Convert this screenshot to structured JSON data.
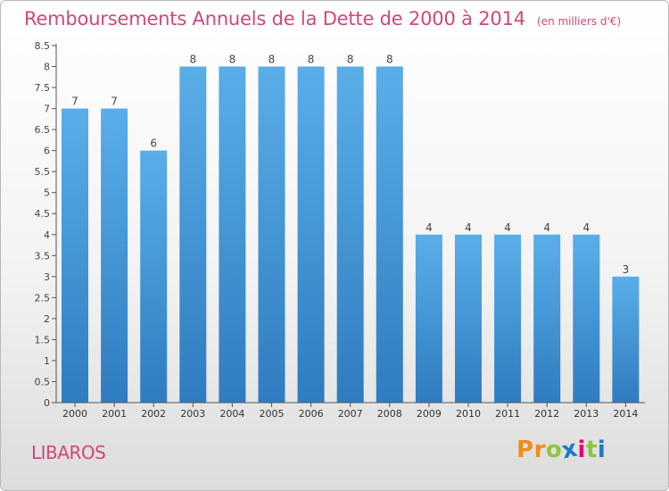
{
  "chart_data": {
    "type": "bar",
    "title": "Remboursements Annuels de la Dette de 2000 à 2014",
    "subtitle": "(en milliers d'€)",
    "categories": [
      "2000",
      "2001",
      "2002",
      "2003",
      "2004",
      "2005",
      "2006",
      "2007",
      "2008",
      "2009",
      "2010",
      "2011",
      "2012",
      "2013",
      "2014"
    ],
    "values": [
      7,
      7,
      6,
      8,
      8,
      8,
      8,
      8,
      8,
      4,
      4,
      4,
      4,
      4,
      3
    ],
    "data_labels": [
      "7",
      "7",
      "6",
      "8",
      "8",
      "8",
      "8",
      "8",
      "8",
      "4",
      "4",
      "4",
      "4",
      "4",
      "3"
    ],
    "ylim": [
      0,
      8.5
    ],
    "yticks": [
      0,
      0.5,
      1,
      1.5,
      2,
      2.5,
      3,
      3.5,
      4,
      4.5,
      5,
      5.5,
      6,
      6.5,
      7,
      7.5,
      8,
      8.5
    ],
    "ytick_labels": [
      "0",
      "0.5",
      "1",
      "1.5",
      "2",
      "2.5",
      "3",
      "3.5",
      "4",
      "4.5",
      "5",
      "5.5",
      "6",
      "6.5",
      "7",
      "7.5",
      "8",
      "8.5"
    ],
    "grid": false,
    "colors": {
      "bar_top": "#5aaee8",
      "bar_bottom": "#2f7cc0",
      "accent": "#d1477a"
    }
  },
  "footer": {
    "commune": "LIBAROS",
    "brand_letters": [
      "P",
      "r",
      "o",
      "x",
      "i",
      "t",
      "i"
    ],
    "brand_colors": [
      "#f28c1e",
      "#f28c1e",
      "#8cc63f",
      "#1e78c8",
      "#e2007a",
      "#8cc63f",
      "#1e78c8"
    ]
  }
}
